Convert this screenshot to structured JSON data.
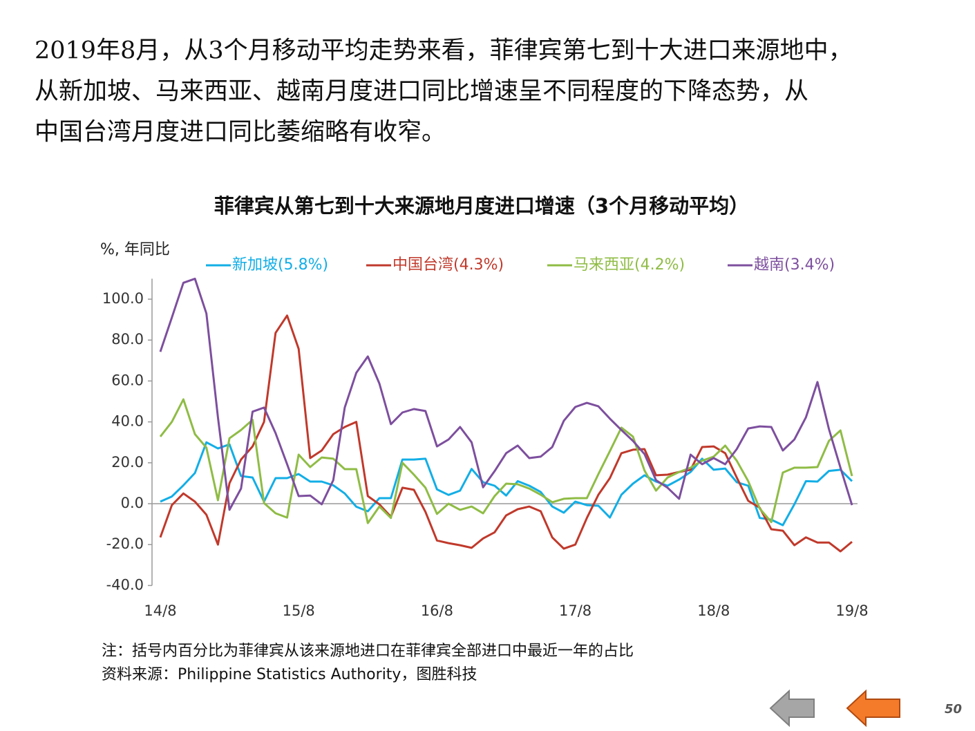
{
  "paragraph": [
    "2019年8月，从3个月移动平均走势来看，菲律宾第七到十大进口来源地中，",
    "从新加坡、马来西亚、越南月度进口同比增速呈不同程度的下降态势，从",
    "中国台湾月度进口同比萎缩略有收窄。"
  ],
  "chart_data": {
    "type": "line",
    "title": "菲律宾从第七到十大来源地月度进口增速（3个月移动平均）",
    "y_label": "%, 年同比",
    "categories": [
      "14/8",
      null,
      null,
      null,
      null,
      null,
      null,
      null,
      null,
      null,
      null,
      null,
      "15/8",
      null,
      null,
      null,
      null,
      null,
      null,
      null,
      null,
      null,
      null,
      null,
      "16/8",
      null,
      null,
      null,
      null,
      null,
      null,
      null,
      null,
      null,
      null,
      null,
      "17/8",
      null,
      null,
      null,
      null,
      null,
      null,
      null,
      null,
      null,
      null,
      null,
      "18/8",
      null,
      null,
      null,
      null,
      null,
      null,
      null,
      null,
      null,
      null,
      null,
      "19/8"
    ],
    "ylim": [
      -40,
      110
    ],
    "yticks": [
      {
        "value": -40,
        "label": "-40.0"
      },
      {
        "value": -20,
        "label": "-20.0"
      },
      {
        "value": 0,
        "label": "0.0"
      },
      {
        "value": 20,
        "label": "20.0"
      },
      {
        "value": 40,
        "label": "40.0"
      },
      {
        "value": 60,
        "label": "60.0"
      },
      {
        "value": 80,
        "label": "80.0"
      },
      {
        "value": 100,
        "label": "100.0"
      }
    ],
    "series": [
      {
        "name": "新加坡(5.8%)",
        "color": "#12aee6",
        "values": [
          1,
          3.5,
          9,
          15,
          30,
          27,
          29,
          13.5,
          12.8,
          1,
          12.5,
          12.5,
          14.5,
          10.8,
          10.8,
          9,
          5,
          -1.5,
          -3.7,
          2.7,
          2.7,
          21.6,
          21.6,
          22,
          7,
          4.3,
          6.4,
          17,
          10.5,
          8.8,
          4,
          11,
          8.8,
          5.7,
          -1.4,
          -4.4,
          1,
          -0.7,
          -1,
          -6.8,
          4.4,
          9.8,
          13.9,
          10.8,
          8.8,
          11.8,
          15.5,
          22,
          16.6,
          17.2,
          10.5,
          8.8,
          -7,
          -7.8,
          -10.5,
          -0.3,
          11,
          10.8,
          16,
          16.6,
          11
        ]
      },
      {
        "name": "中国台湾(4.3%)",
        "color": "#c0392b",
        "values": [
          -16.5,
          -0.7,
          5,
          1,
          -5.4,
          -20,
          10,
          21.6,
          28,
          40,
          83.5,
          92,
          75.7,
          22.3,
          26,
          34,
          37.5,
          40,
          3.7,
          -0.3,
          -6.4,
          7.8,
          6.8,
          -4,
          -18,
          -19.3,
          -20.3,
          -21.6,
          -17,
          -14,
          -5.7,
          -2.7,
          -1.4,
          -3.7,
          -16.5,
          -22,
          -20,
          -7,
          4.4,
          12.5,
          24.7,
          26.4,
          26.7,
          13.9,
          14.2,
          15.5,
          16.6,
          27.7,
          28,
          24.7,
          12.8,
          1.4,
          -2,
          -12.5,
          -13.2,
          -20.3,
          -16.5,
          -19,
          -19,
          -23.3,
          -18.6
        ]
      },
      {
        "name": "马来西亚(4.2%)",
        "color": "#8fbc45",
        "values": [
          32.8,
          40,
          51,
          34,
          27.4,
          1.7,
          32,
          36,
          41,
          0.3,
          -4.7,
          -6.8,
          24,
          17.9,
          22.6,
          22,
          16.9,
          16.9,
          -9.5,
          -1.4,
          -7,
          20,
          14.2,
          7.8,
          -5,
          0,
          -3,
          -1.4,
          -4.7,
          3.7,
          9.8,
          9.5,
          7.4,
          4.4,
          0.7,
          2.4,
          2.7,
          2.7,
          14.5,
          25.7,
          37.2,
          32.8,
          16.2,
          6.4,
          12.8,
          15.5,
          17.6,
          21,
          23,
          28.4,
          21,
          11,
          -2.4,
          -9,
          15.2,
          17.6,
          17.6,
          17.9,
          30.7,
          35.8,
          13.5
        ]
      },
      {
        "name": "越南(3.4%)",
        "color": "#7d4f9e",
        "values": [
          74.3,
          91,
          108,
          110,
          93,
          42.2,
          -3,
          7.4,
          45,
          47,
          34.5,
          19.3,
          3.7,
          4,
          -0.3,
          11.5,
          47,
          64,
          72,
          58.8,
          38.9,
          44.6,
          46.3,
          45.3,
          28,
          31.4,
          37.5,
          30,
          8,
          15.9,
          24.7,
          28.4,
          22.3,
          23,
          27.7,
          40.5,
          47.3,
          49.3,
          47.6,
          41.6,
          36,
          30.7,
          24.3,
          11.5,
          7.8,
          2.4,
          24,
          19.3,
          22.3,
          19.3,
          26.7,
          36.8,
          37.8,
          37.5,
          26,
          31.4,
          42.2,
          59.5,
          36.5,
          17.6,
          -0.7
        ]
      }
    ]
  },
  "notes": [
    "注：括号内百分比为菲律宾从该来源地进口在菲律宾全部进口中最近一年的占比",
    "资料来源：Philippine Statistics Authority，图胜科技"
  ],
  "page_number": "50"
}
